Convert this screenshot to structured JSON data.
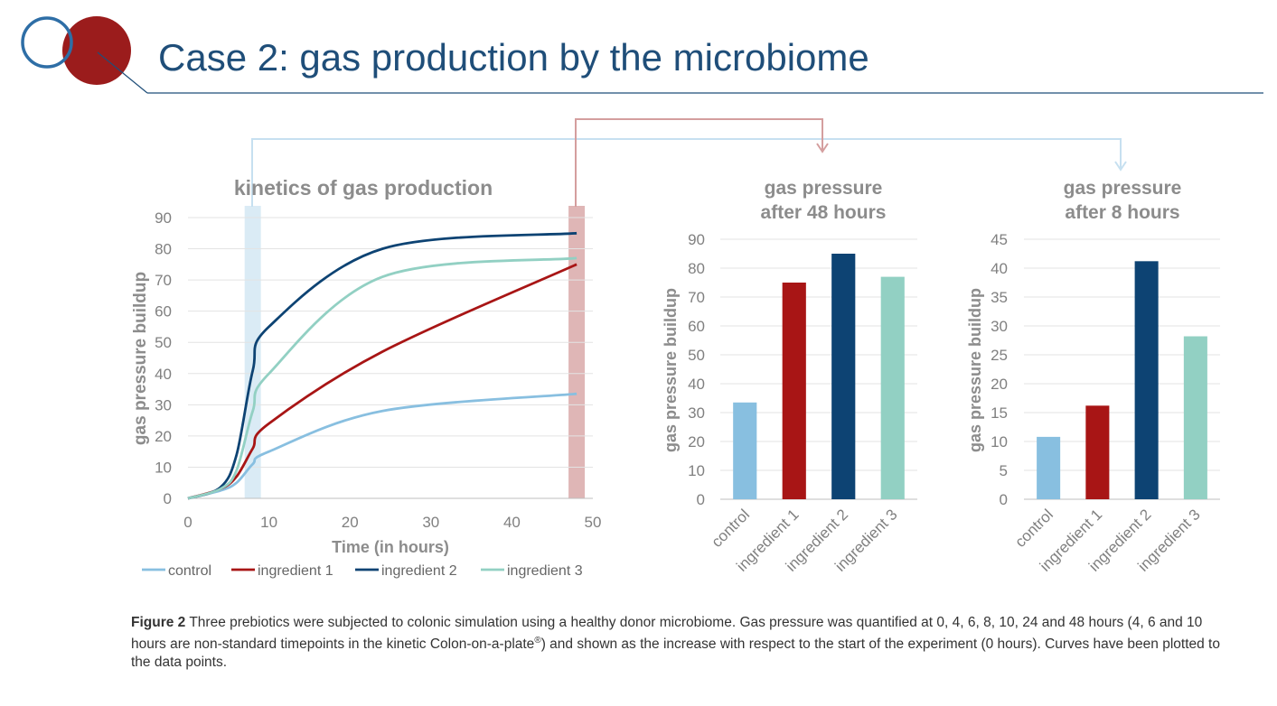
{
  "slide": {
    "title": "Case 2: gas production by the microbiome",
    "caption": {
      "label": "Figure 2",
      "text_part1": " Three prebiotics were subjected to colonic simulation using a healthy donor microbiome. Gas pressure was quantified at 0, 4, 6, 8, 10, 24 and 48 hours (4, 6 and 10 hours are non-standard timepoints in the kinetic Colon-on-a-plate",
      "superscript": "®",
      "text_part2": ") and shown as the increase with respect to the start of the experiment (0 hours). Curves have been plotted to the data points."
    },
    "colors": {
      "title": "#1f4e79",
      "logo_red": "#9b1c1c",
      "logo_blue": "#2e6ea6",
      "control": "#88bfe0",
      "ingredient1": "#a81515",
      "ingredient2": "#0d4373",
      "ingredient3": "#92d0c3",
      "highlight_8h": "#c6e0f0",
      "highlight_48h": "#d49e9e"
    }
  },
  "chart_data": [
    {
      "type": "line",
      "title": "kinetics of gas production",
      "xlabel": "Time (in hours)",
      "ylabel": "gas pressure buildup",
      "xlim": [
        0,
        50
      ],
      "ylim": [
        0,
        90
      ],
      "xticks": [
        0,
        10,
        20,
        30,
        40,
        50
      ],
      "yticks": [
        0,
        10,
        20,
        30,
        40,
        50,
        60,
        70,
        80,
        90
      ],
      "grid": "horizontal",
      "legend": "bottom",
      "highlighted_x": [
        8,
        48
      ],
      "series": [
        {
          "name": "control",
          "x": [
            0,
            4,
            6,
            8,
            10,
            24,
            48
          ],
          "y": [
            0,
            2.5,
            5,
            11,
            15,
            28,
            33.5
          ]
        },
        {
          "name": "ingredient 1",
          "x": [
            0,
            4,
            6,
            8,
            10,
            24,
            48
          ],
          "y": [
            0,
            3,
            7,
            16,
            24,
            47,
            75
          ]
        },
        {
          "name": "ingredient 2",
          "x": [
            0,
            4,
            6,
            8,
            10,
            24,
            48
          ],
          "y": [
            0,
            3.5,
            14,
            41,
            55,
            80,
            85
          ]
        },
        {
          "name": "ingredient 3",
          "x": [
            0,
            4,
            6,
            8,
            10,
            24,
            48
          ],
          "y": [
            0,
            3,
            9,
            28,
            40,
            71,
            77
          ]
        }
      ]
    },
    {
      "type": "bar",
      "title": "gas pressure after 48 hours",
      "title_lines": [
        "gas pressure",
        "after 48 hours"
      ],
      "ylabel": "gas pressure buildup",
      "categories": [
        "control",
        "ingredient 1",
        "ingredient 2",
        "ingredient 3"
      ],
      "values": [
        33.5,
        75,
        85,
        77
      ],
      "ylim": [
        0,
        90
      ],
      "yticks": [
        0,
        10,
        20,
        30,
        40,
        50,
        60,
        70,
        80,
        90
      ],
      "grid": "horizontal"
    },
    {
      "type": "bar",
      "title": "gas pressure after 8 hours",
      "title_lines": [
        "gas pressure",
        "after 8 hours"
      ],
      "ylabel": "gas pressure buildup",
      "categories": [
        "control",
        "ingredient 1",
        "ingredient 2",
        "ingredient 3"
      ],
      "values": [
        10.8,
        16.2,
        41.2,
        28.2
      ],
      "ylim": [
        0,
        45
      ],
      "yticks": [
        0,
        5,
        10,
        15,
        20,
        25,
        30,
        35,
        40,
        45
      ],
      "grid": "horizontal"
    }
  ]
}
